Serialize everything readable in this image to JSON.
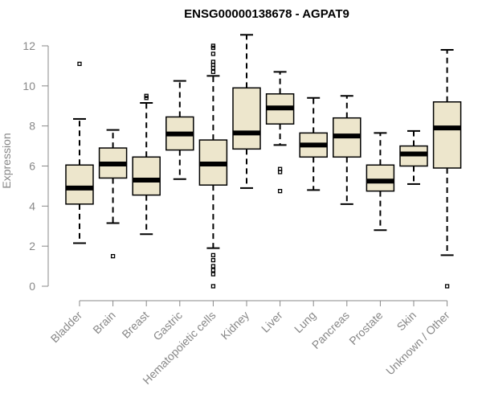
{
  "chart_data": {
    "type": "boxplot",
    "title": "ENSG00000138678 - AGPAT9",
    "xlabel": "",
    "ylabel": "Expression",
    "ylim": [
      0,
      12.5
    ],
    "yticks": [
      0,
      2,
      4,
      6,
      8,
      10,
      12
    ],
    "grid": false,
    "colors": {
      "box_fill": "#ede6cc",
      "stroke": "#000000",
      "axis": "#888888"
    },
    "categories": [
      "Bladder",
      "Brain",
      "Breast",
      "Gastric",
      "Hematopoietic cells",
      "Kidney",
      "Liver",
      "Lung",
      "Pancreas",
      "Prostate",
      "Skin",
      "Unknown / Other"
    ],
    "boxes": [
      {
        "name": "Bladder",
        "whisker_low": 2.15,
        "q1": 4.1,
        "median": 4.9,
        "q3": 6.05,
        "whisker_high": 8.35,
        "outliers": [
          11.1
        ]
      },
      {
        "name": "Brain",
        "whisker_low": 3.15,
        "q1": 5.4,
        "median": 6.1,
        "q3": 6.9,
        "whisker_high": 7.8,
        "outliers": [
          1.5
        ]
      },
      {
        "name": "Breast",
        "whisker_low": 2.6,
        "q1": 4.55,
        "median": 5.3,
        "q3": 6.45,
        "whisker_high": 9.15,
        "outliers": [
          9.4,
          9.5
        ]
      },
      {
        "name": "Gastric",
        "whisker_low": 5.35,
        "q1": 6.8,
        "median": 7.6,
        "q3": 8.45,
        "whisker_high": 10.25,
        "outliers": []
      },
      {
        "name": "Hematopoietic cells",
        "whisker_low": 1.9,
        "q1": 5.05,
        "median": 6.1,
        "q3": 7.3,
        "whisker_high": 10.5,
        "outliers": [
          0.0,
          0.6,
          0.8,
          1.0,
          1.3,
          1.55,
          10.7,
          10.9,
          11.05,
          11.2,
          11.6,
          11.9,
          12.0
        ]
      },
      {
        "name": "Kidney",
        "whisker_low": 4.9,
        "q1": 6.85,
        "median": 7.65,
        "q3": 9.9,
        "whisker_high": 12.55,
        "outliers": []
      },
      {
        "name": "Liver",
        "whisker_low": 7.05,
        "q1": 8.1,
        "median": 8.9,
        "q3": 9.6,
        "whisker_high": 10.7,
        "outliers": [
          4.75,
          5.7,
          5.85
        ]
      },
      {
        "name": "Lung",
        "whisker_low": 4.8,
        "q1": 6.45,
        "median": 7.05,
        "q3": 7.65,
        "whisker_high": 9.4,
        "outliers": []
      },
      {
        "name": "Pancreas",
        "whisker_low": 4.1,
        "q1": 6.45,
        "median": 7.5,
        "q3": 8.4,
        "whisker_high": 9.5,
        "outliers": []
      },
      {
        "name": "Prostate",
        "whisker_low": 2.8,
        "q1": 4.75,
        "median": 5.25,
        "q3": 6.05,
        "whisker_high": 7.65,
        "outliers": []
      },
      {
        "name": "Skin",
        "whisker_low": 5.1,
        "q1": 6.0,
        "median": 6.6,
        "q3": 7.0,
        "whisker_high": 7.75,
        "outliers": []
      },
      {
        "name": "Unknown / Other",
        "whisker_low": 1.55,
        "q1": 5.9,
        "median": 7.9,
        "q3": 9.2,
        "whisker_high": 11.8,
        "outliers": [
          0.0
        ]
      }
    ]
  }
}
